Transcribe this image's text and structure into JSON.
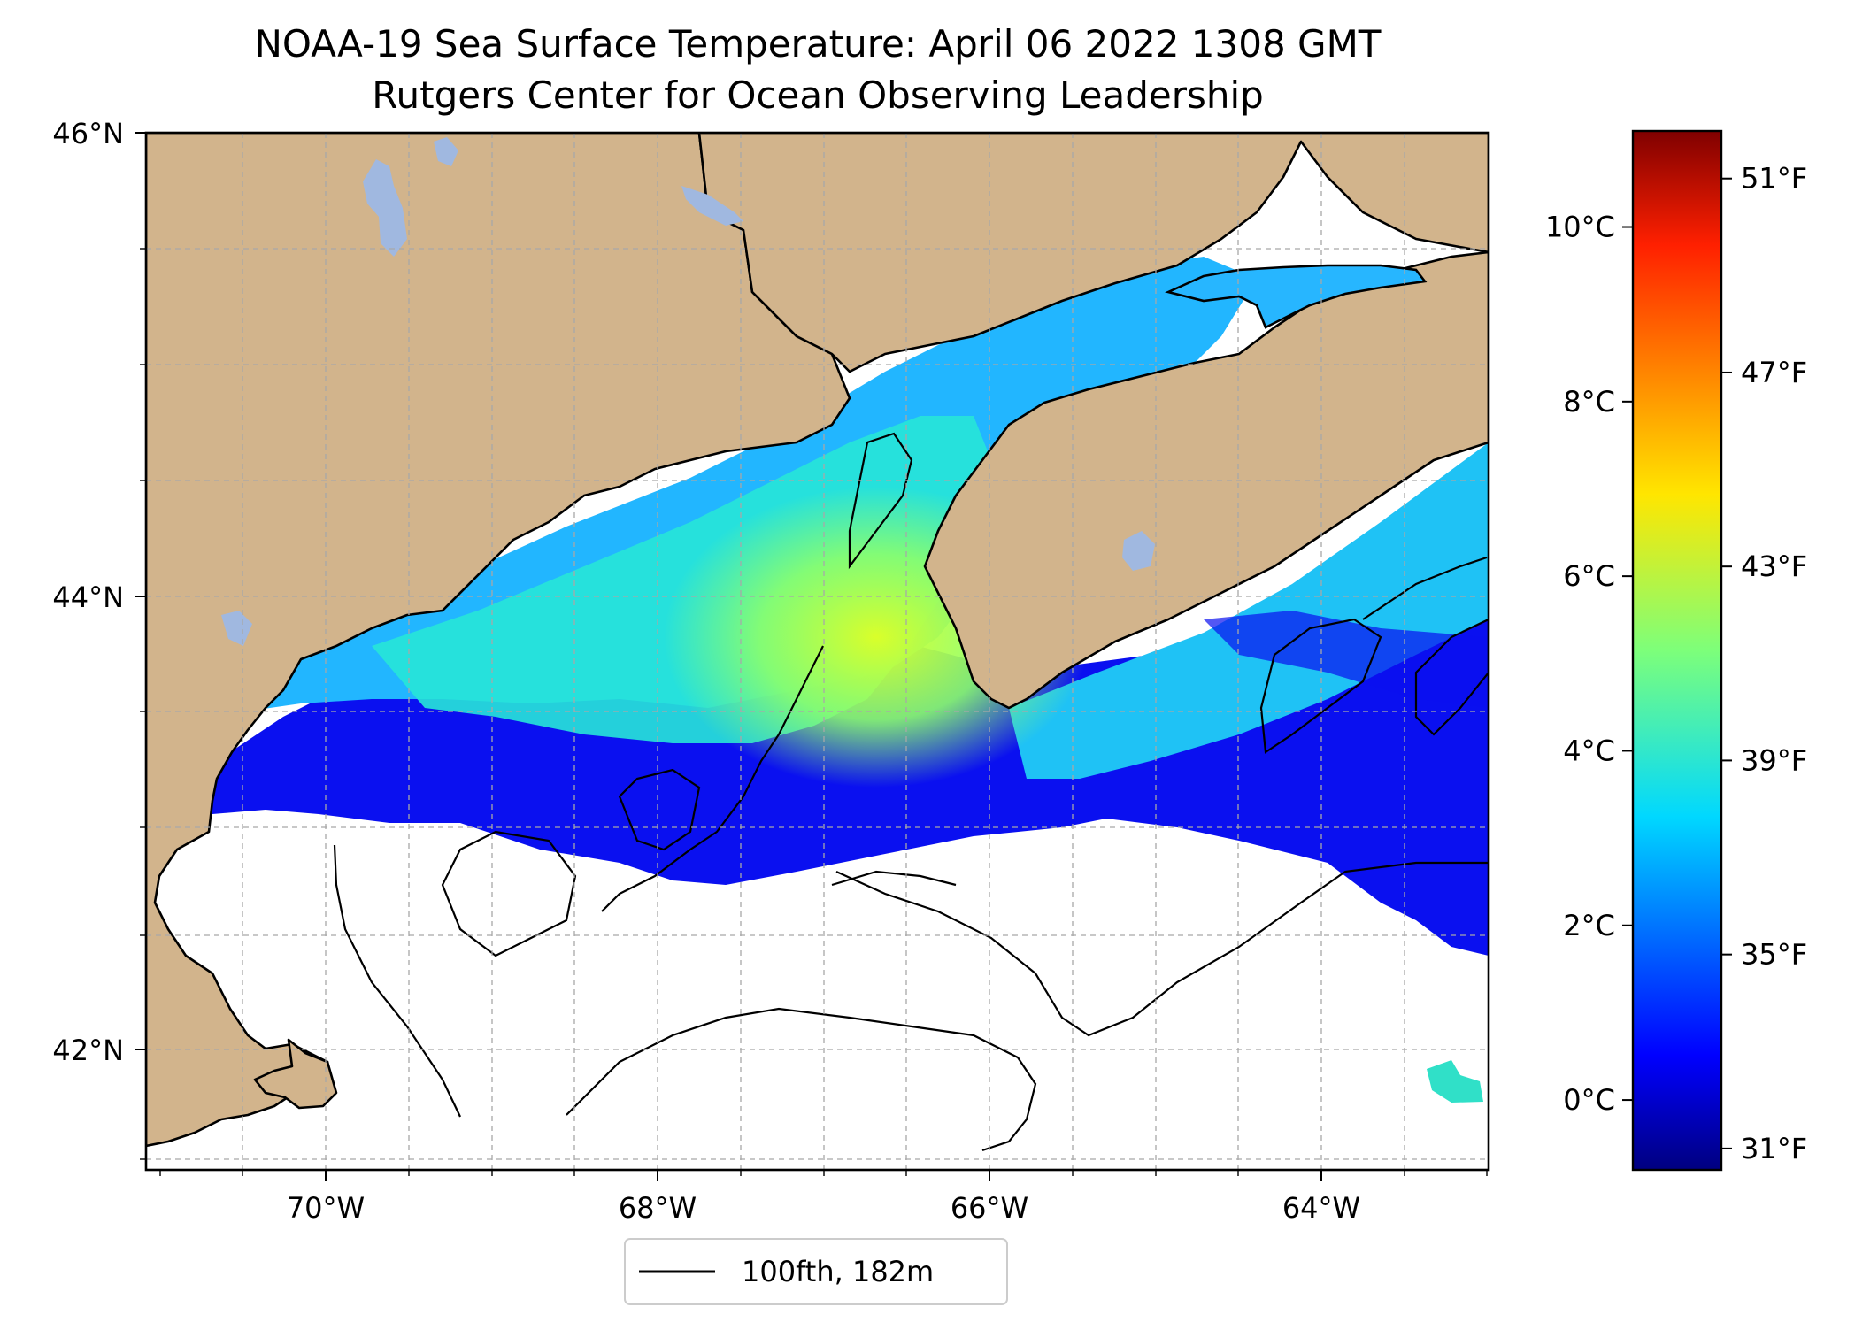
{
  "title": {
    "line1": "NOAA-19 Sea Surface Temperature: April 06 2022 1308 GMT",
    "line2": "Rutgers Center for Ocean Observing Leadership"
  },
  "map": {
    "lon_range": [
      -71.1,
      -63.0
    ],
    "lat_range": [
      41.55,
      46.0
    ],
    "lat_ticks": [
      {
        "value": 46,
        "label": "46°N"
      },
      {
        "value": 44,
        "label": "44°N"
      },
      {
        "value": 42,
        "label": "42°N"
      }
    ],
    "lon_ticks": [
      {
        "value": -70,
        "label": "70°W"
      },
      {
        "value": -68,
        "label": "68°W"
      },
      {
        "value": -66,
        "label": "66°W"
      },
      {
        "value": -64,
        "label": "64°W"
      }
    ],
    "grid": true,
    "colors": {
      "land": "#d2b48c",
      "lake": "#a0b8e0",
      "no_data": "#ffffff",
      "coast": "#000000"
    }
  },
  "legend": {
    "label": "100fth, 182m",
    "placement": "bottom-center"
  },
  "colorbar": {
    "colormap": "jet",
    "celsius_ticks": [
      {
        "value": 10,
        "label": "10°C"
      },
      {
        "value": 8,
        "label": "8°C"
      },
      {
        "value": 6,
        "label": "6°C"
      },
      {
        "value": 4,
        "label": "4°C"
      },
      {
        "value": 2,
        "label": "2°C"
      },
      {
        "value": 0,
        "label": "0°C"
      }
    ],
    "fahrenheit_ticks": [
      {
        "value": 51,
        "label": "51°F"
      },
      {
        "value": 47,
        "label": "47°F"
      },
      {
        "value": 43,
        "label": "43°F"
      },
      {
        "value": 39,
        "label": "39°F"
      },
      {
        "value": 35,
        "label": "35°F"
      },
      {
        "value": 31,
        "label": "31°F"
      }
    ],
    "range_c": [
      -0.8,
      11.1
    ]
  }
}
